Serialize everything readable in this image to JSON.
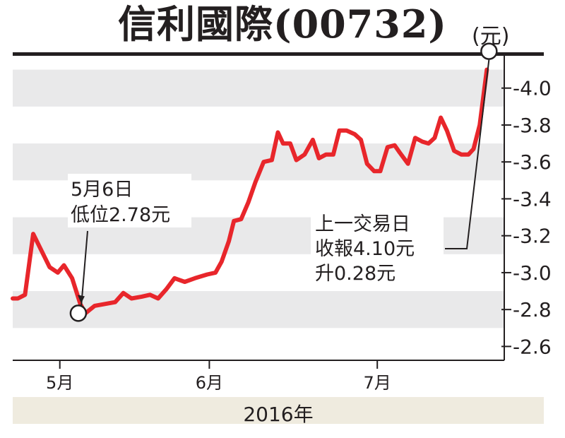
{
  "title": "信利國際(00732)",
  "unit_label": "(元)",
  "year_label": "2016年",
  "chart_data": {
    "type": "line",
    "series": [
      {
        "color": "#e8262b",
        "points": [
          {
            "t": 0.0,
            "v": 2.86
          },
          {
            "t": 0.5,
            "v": 2.86
          },
          {
            "t": 1.2,
            "v": 2.88
          },
          {
            "t": 2.0,
            "v": 3.21
          },
          {
            "t": 2.8,
            "v": 3.12
          },
          {
            "t": 3.6,
            "v": 3.03
          },
          {
            "t": 4.4,
            "v": 3.0
          },
          {
            "t": 5.0,
            "v": 3.04
          },
          {
            "t": 5.8,
            "v": 2.97
          },
          {
            "t": 6.6,
            "v": 2.83
          },
          {
            "t": 7.1,
            "v": 2.78
          },
          {
            "t": 8.0,
            "v": 2.82
          },
          {
            "t": 9.0,
            "v": 2.83
          },
          {
            "t": 10.0,
            "v": 2.84
          },
          {
            "t": 10.8,
            "v": 2.89
          },
          {
            "t": 11.6,
            "v": 2.86
          },
          {
            "t": 12.6,
            "v": 2.87
          },
          {
            "t": 13.4,
            "v": 2.88
          },
          {
            "t": 14.2,
            "v": 2.86
          },
          {
            "t": 15.0,
            "v": 2.91
          },
          {
            "t": 15.8,
            "v": 2.97
          },
          {
            "t": 16.8,
            "v": 2.95
          },
          {
            "t": 17.8,
            "v": 2.97
          },
          {
            "t": 19.0,
            "v": 2.99
          },
          {
            "t": 19.8,
            "v": 3.0
          },
          {
            "t": 20.4,
            "v": 3.06
          },
          {
            "t": 21.1,
            "v": 3.17
          },
          {
            "t": 21.6,
            "v": 3.28
          },
          {
            "t": 22.3,
            "v": 3.29
          },
          {
            "t": 23.0,
            "v": 3.38
          },
          {
            "t": 23.7,
            "v": 3.49
          },
          {
            "t": 24.5,
            "v": 3.6
          },
          {
            "t": 25.3,
            "v": 3.61
          },
          {
            "t": 25.9,
            "v": 3.76
          },
          {
            "t": 26.4,
            "v": 3.7
          },
          {
            "t": 27.1,
            "v": 3.7
          },
          {
            "t": 27.7,
            "v": 3.61
          },
          {
            "t": 28.5,
            "v": 3.64
          },
          {
            "t": 29.3,
            "v": 3.72
          },
          {
            "t": 29.9,
            "v": 3.62
          },
          {
            "t": 30.6,
            "v": 3.64
          },
          {
            "t": 31.3,
            "v": 3.64
          },
          {
            "t": 31.9,
            "v": 3.77
          },
          {
            "t": 32.6,
            "v": 3.77
          },
          {
            "t": 33.4,
            "v": 3.75
          },
          {
            "t": 34.0,
            "v": 3.72
          },
          {
            "t": 34.6,
            "v": 3.59
          },
          {
            "t": 35.3,
            "v": 3.55
          },
          {
            "t": 35.9,
            "v": 3.55
          },
          {
            "t": 36.6,
            "v": 3.68
          },
          {
            "t": 37.3,
            "v": 3.69
          },
          {
            "t": 37.8,
            "v": 3.65
          },
          {
            "t": 38.6,
            "v": 3.59
          },
          {
            "t": 39.3,
            "v": 3.73
          },
          {
            "t": 40.0,
            "v": 3.71
          },
          {
            "t": 40.6,
            "v": 3.7
          },
          {
            "t": 41.2,
            "v": 3.73
          },
          {
            "t": 41.8,
            "v": 3.84
          },
          {
            "t": 42.4,
            "v": 3.77
          },
          {
            "t": 43.1,
            "v": 3.66
          },
          {
            "t": 43.8,
            "v": 3.64
          },
          {
            "t": 44.5,
            "v": 3.64
          },
          {
            "t": 45.0,
            "v": 3.67
          },
          {
            "t": 45.6,
            "v": 3.8
          },
          {
            "t": 46.3,
            "v": 4.1
          }
        ]
      }
    ],
    "ylim": [
      2.525,
      4.175
    ],
    "yticks": [
      "2.6",
      "2.8",
      "3.0",
      "3.2",
      "3.4",
      "3.6",
      "3.8",
      "4.0"
    ],
    "xticks": [
      {
        "t": 4.6,
        "label": "5月"
      },
      {
        "t": 19.2,
        "label": "6月"
      },
      {
        "t": 35.6,
        "label": "7月"
      }
    ],
    "xlim": [
      0,
      48
    ],
    "grid_bands": true,
    "annotations": [
      {
        "id": "low",
        "lines": [
          "5月6日",
          "低位2.78元"
        ],
        "at": {
          "t": 6.2,
          "v": 2.78
        }
      },
      {
        "id": "last",
        "lines": [
          "上一交易日",
          "收報4.10元",
          "升0.28元"
        ],
        "at": {
          "t": 46.3,
          "v": 4.1
        }
      }
    ]
  }
}
